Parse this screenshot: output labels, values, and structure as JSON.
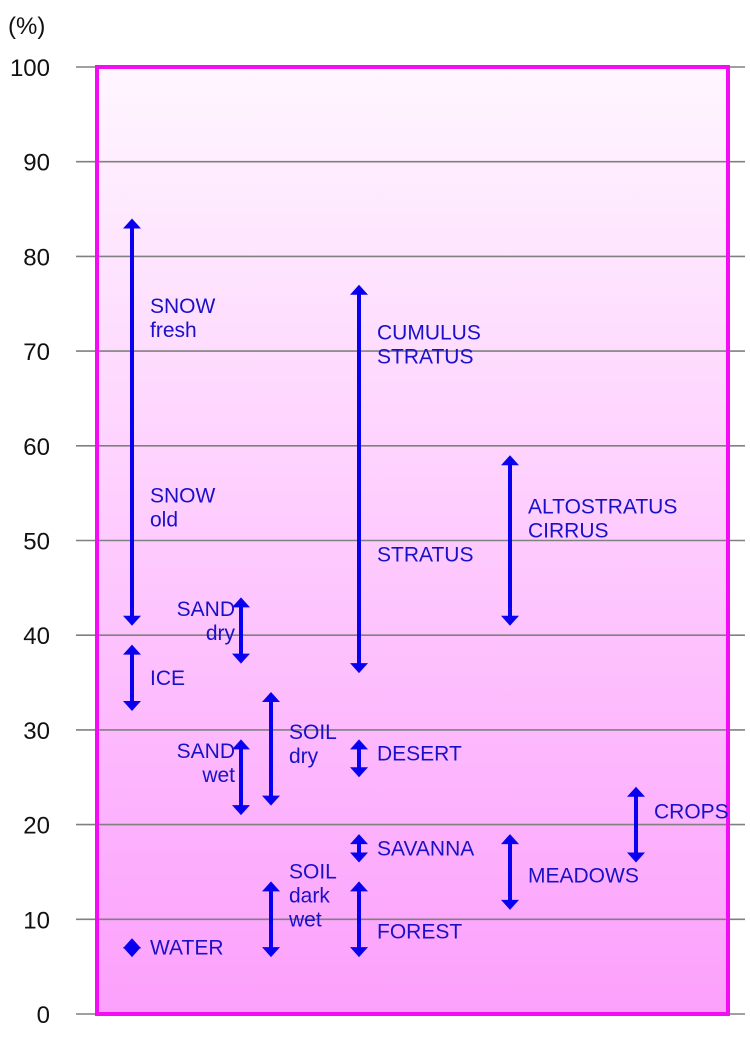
{
  "chart_data": {
    "type": "range",
    "title": "",
    "ylabel": "(%)",
    "xlabel": "",
    "ylim": [
      0,
      100
    ],
    "yticks": [
      0,
      10,
      20,
      30,
      40,
      50,
      60,
      70,
      80,
      90,
      100
    ],
    "grid": true,
    "legend": null,
    "colors": {
      "frame": "#f40cf4",
      "gradient_top": "#fff6ff",
      "gradient_bottom": "#fca0fc",
      "arrow": "#0a00f0",
      "text": "#1a10c8",
      "grid": "#808080"
    },
    "ranges": [
      {
        "name": "SNOW fresh / SNOW old",
        "low": 41,
        "high": 84,
        "column": 1,
        "labels": [
          {
            "lines": [
              "SNOW",
              "fresh"
            ],
            "at": 73.5,
            "anchor": "start"
          },
          {
            "lines": [
              "SNOW",
              "old"
            ],
            "at": 53.5,
            "anchor": "start"
          }
        ]
      },
      {
        "name": "ICE",
        "low": 32,
        "high": 39,
        "column": 1,
        "labels": [
          {
            "lines": [
              "ICE"
            ],
            "at": 35.5,
            "anchor": "start"
          }
        ]
      },
      {
        "name": "WATER",
        "low": 6,
        "high": 8,
        "column": 1,
        "labels": [
          {
            "lines": [
              "WATER"
            ],
            "at": 7,
            "anchor": "start"
          }
        ]
      },
      {
        "name": "SAND dry",
        "low": 37,
        "high": 44,
        "column": 2,
        "labels": [
          {
            "lines": [
              "SAND",
              "dry"
            ],
            "at": 41.5,
            "anchor": "end"
          }
        ]
      },
      {
        "name": "SAND wet",
        "low": 21,
        "high": 29,
        "column": 2,
        "labels": [
          {
            "lines": [
              "SAND",
              "wet"
            ],
            "at": 26.5,
            "anchor": "end"
          }
        ]
      },
      {
        "name": "SOIL dry",
        "low": 22,
        "high": 34,
        "column": 3,
        "labels": [
          {
            "lines": [
              "SOIL",
              "dry"
            ],
            "at": 28.5,
            "anchor": "start"
          }
        ]
      },
      {
        "name": "SOIL dark wet",
        "low": 6,
        "high": 14,
        "column": 3,
        "labels": [
          {
            "lines": [
              "SOIL",
              "dark",
              "wet"
            ],
            "at": 12.5,
            "anchor": "start"
          }
        ]
      },
      {
        "name": "CUMULUS STRATUS / STRATUS",
        "low": 36,
        "high": 77,
        "column": 4,
        "labels": [
          {
            "lines": [
              "CUMULUS",
              "STRATUS"
            ],
            "at": 70.7,
            "anchor": "start"
          },
          {
            "lines": [
              "STRATUS"
            ],
            "at": 48.5,
            "anchor": "start"
          }
        ]
      },
      {
        "name": "DESERT",
        "low": 25,
        "high": 29,
        "column": 4,
        "labels": [
          {
            "lines": [
              "DESERT"
            ],
            "at": 27.5,
            "anchor": "start"
          }
        ]
      },
      {
        "name": "SAVANNA",
        "low": 16,
        "high": 19,
        "column": 4,
        "labels": [
          {
            "lines": [
              "SAVANNA"
            ],
            "at": 17.5,
            "anchor": "start"
          }
        ]
      },
      {
        "name": "FOREST",
        "low": 6,
        "high": 14,
        "column": 4,
        "labels": [
          {
            "lines": [
              "FOREST"
            ],
            "at": 8.7,
            "anchor": "start"
          }
        ]
      },
      {
        "name": "ALTOSTRATUS CIRRUS",
        "low": 41,
        "high": 59,
        "column": 5,
        "labels": [
          {
            "lines": [
              "ALTOSTRATUS",
              "CIRRUS"
            ],
            "at": 52.3,
            "anchor": "start"
          }
        ]
      },
      {
        "name": "MEADOWS",
        "low": 11,
        "high": 19,
        "column": 5,
        "labels": [
          {
            "lines": [
              "MEADOWS"
            ],
            "at": 14.6,
            "anchor": "start"
          }
        ]
      },
      {
        "name": "CROPS",
        "low": 16,
        "high": 24,
        "column": 6,
        "labels": [
          {
            "lines": [
              "CROPS"
            ],
            "at": 21.4,
            "anchor": "start"
          }
        ]
      }
    ]
  }
}
